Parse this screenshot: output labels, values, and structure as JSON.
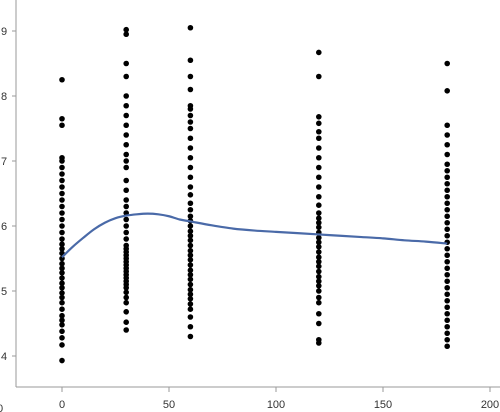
{
  "chart_data": {
    "type": "scatter",
    "title": "",
    "xlabel": "",
    "ylabel": "",
    "xlim": [
      -30,
      200
    ],
    "ylim": [
      3.6,
      9.3
    ],
    "x_ticks": [
      0,
      50,
      100,
      150,
      200
    ],
    "y_ticks": [
      4,
      5,
      6,
      7,
      8,
      9
    ],
    "x_tick_labels": [
      "0",
      "50",
      "100",
      "150",
      "200"
    ],
    "y_tick_labels": [
      "4",
      "5",
      "6",
      "7",
      "8",
      "9"
    ],
    "left_edge_label": "0",
    "grid": false,
    "legend": "none",
    "colors": {
      "points": "#000000",
      "smooth": "#4a6aa8",
      "axes": "#9a9a9a"
    },
    "series": [
      {
        "points": [
          [
            0,
            3.93
          ],
          [
            0,
            4.17
          ],
          [
            0,
            4.28
          ],
          [
            0,
            4.38
          ],
          [
            0,
            4.48
          ],
          [
            0,
            4.55
          ],
          [
            0,
            4.62
          ],
          [
            0,
            4.72
          ],
          [
            0,
            4.82
          ],
          [
            0,
            4.9
          ],
          [
            0,
            4.97
          ],
          [
            0,
            5.05
          ],
          [
            0,
            5.12
          ],
          [
            0,
            5.2
          ],
          [
            0,
            5.28
          ],
          [
            0,
            5.35
          ],
          [
            0,
            5.42
          ],
          [
            0,
            5.5
          ],
          [
            0,
            5.58
          ],
          [
            0,
            5.65
          ],
          [
            0,
            5.72
          ],
          [
            0,
            5.8
          ],
          [
            0,
            5.9
          ],
          [
            0,
            6.0
          ],
          [
            0,
            6.1
          ],
          [
            0,
            6.2
          ],
          [
            0,
            6.3
          ],
          [
            0,
            6.4
          ],
          [
            0,
            6.5
          ],
          [
            0,
            6.6
          ],
          [
            0,
            6.7
          ],
          [
            0,
            6.8
          ],
          [
            0,
            6.9
          ],
          [
            0,
            7.0
          ],
          [
            0,
            7.05
          ],
          [
            0,
            7.55
          ],
          [
            0,
            7.65
          ],
          [
            0,
            8.25
          ],
          [
            30,
            4.4
          ],
          [
            30,
            4.52
          ],
          [
            30,
            4.68
          ],
          [
            30,
            4.82
          ],
          [
            30,
            4.9
          ],
          [
            30,
            4.98
          ],
          [
            30,
            5.05
          ],
          [
            30,
            5.1
          ],
          [
            30,
            5.15
          ],
          [
            30,
            5.2
          ],
          [
            30,
            5.25
          ],
          [
            30,
            5.3
          ],
          [
            30,
            5.35
          ],
          [
            30,
            5.4
          ],
          [
            30,
            5.45
          ],
          [
            30,
            5.5
          ],
          [
            30,
            5.55
          ],
          [
            30,
            5.6
          ],
          [
            30,
            5.65
          ],
          [
            30,
            5.7
          ],
          [
            30,
            5.8
          ],
          [
            30,
            5.9
          ],
          [
            30,
            6.0
          ],
          [
            30,
            6.1
          ],
          [
            30,
            6.2
          ],
          [
            30,
            6.3
          ],
          [
            30,
            6.4
          ],
          [
            30,
            6.55
          ],
          [
            30,
            6.7
          ],
          [
            30,
            6.9
          ],
          [
            30,
            7.0
          ],
          [
            30,
            7.1
          ],
          [
            30,
            7.25
          ],
          [
            30,
            7.4
          ],
          [
            30,
            7.55
          ],
          [
            30,
            7.7
          ],
          [
            30,
            7.85
          ],
          [
            30,
            8.0
          ],
          [
            30,
            8.3
          ],
          [
            30,
            8.5
          ],
          [
            30,
            8.95
          ],
          [
            30,
            9.02
          ],
          [
            60,
            4.3
          ],
          [
            60,
            4.45
          ],
          [
            60,
            4.6
          ],
          [
            60,
            4.72
          ],
          [
            60,
            4.8
          ],
          [
            60,
            4.88
          ],
          [
            60,
            4.95
          ],
          [
            60,
            5.02
          ],
          [
            60,
            5.1
          ],
          [
            60,
            5.18
          ],
          [
            60,
            5.25
          ],
          [
            60,
            5.32
          ],
          [
            60,
            5.4
          ],
          [
            60,
            5.48
          ],
          [
            60,
            5.55
          ],
          [
            60,
            5.62
          ],
          [
            60,
            5.7
          ],
          [
            60,
            5.78
          ],
          [
            60,
            5.85
          ],
          [
            60,
            5.92
          ],
          [
            60,
            6.0
          ],
          [
            60,
            6.08
          ],
          [
            60,
            6.15
          ],
          [
            60,
            6.25
          ],
          [
            60,
            6.35
          ],
          [
            60,
            6.48
          ],
          [
            60,
            6.6
          ],
          [
            60,
            6.75
          ],
          [
            60,
            6.9
          ],
          [
            60,
            7.05
          ],
          [
            60,
            7.2
          ],
          [
            60,
            7.35
          ],
          [
            60,
            7.5
          ],
          [
            60,
            7.6
          ],
          [
            60,
            7.7
          ],
          [
            60,
            7.8
          ],
          [
            60,
            7.85
          ],
          [
            60,
            8.1
          ],
          [
            60,
            8.3
          ],
          [
            60,
            8.55
          ],
          [
            60,
            9.05
          ],
          [
            120,
            4.2
          ],
          [
            120,
            4.25
          ],
          [
            120,
            4.5
          ],
          [
            120,
            4.65
          ],
          [
            120,
            4.82
          ],
          [
            120,
            4.9
          ],
          [
            120,
            5.0
          ],
          [
            120,
            5.08
          ],
          [
            120,
            5.15
          ],
          [
            120,
            5.22
          ],
          [
            120,
            5.3
          ],
          [
            120,
            5.38
          ],
          [
            120,
            5.45
          ],
          [
            120,
            5.52
          ],
          [
            120,
            5.6
          ],
          [
            120,
            5.68
          ],
          [
            120,
            5.75
          ],
          [
            120,
            5.82
          ],
          [
            120,
            5.9
          ],
          [
            120,
            5.98
          ],
          [
            120,
            6.05
          ],
          [
            120,
            6.12
          ],
          [
            120,
            6.2
          ],
          [
            120,
            6.32
          ],
          [
            120,
            6.45
          ],
          [
            120,
            6.6
          ],
          [
            120,
            6.75
          ],
          [
            120,
            6.9
          ],
          [
            120,
            7.05
          ],
          [
            120,
            7.2
          ],
          [
            120,
            7.35
          ],
          [
            120,
            7.45
          ],
          [
            120,
            7.58
          ],
          [
            120,
            7.68
          ],
          [
            120,
            8.3
          ],
          [
            120,
            8.67
          ],
          [
            180,
            4.15
          ],
          [
            180,
            4.25
          ],
          [
            180,
            4.35
          ],
          [
            180,
            4.45
          ],
          [
            180,
            4.55
          ],
          [
            180,
            4.65
          ],
          [
            180,
            4.75
          ],
          [
            180,
            4.85
          ],
          [
            180,
            4.95
          ],
          [
            180,
            5.05
          ],
          [
            180,
            5.15
          ],
          [
            180,
            5.25
          ],
          [
            180,
            5.35
          ],
          [
            180,
            5.45
          ],
          [
            180,
            5.55
          ],
          [
            180,
            5.65
          ],
          [
            180,
            5.75
          ],
          [
            180,
            5.85
          ],
          [
            180,
            5.95
          ],
          [
            180,
            6.05
          ],
          [
            180,
            6.15
          ],
          [
            180,
            6.25
          ],
          [
            180,
            6.35
          ],
          [
            180,
            6.45
          ],
          [
            180,
            6.55
          ],
          [
            180,
            6.65
          ],
          [
            180,
            6.75
          ],
          [
            180,
            6.85
          ],
          [
            180,
            6.95
          ],
          [
            180,
            7.1
          ],
          [
            180,
            7.25
          ],
          [
            180,
            7.4
          ],
          [
            180,
            7.55
          ],
          [
            180,
            8.08
          ],
          [
            180,
            8.5
          ]
        ]
      },
      {
        "type": "line",
        "smooth": true,
        "points": [
          [
            0,
            5.52
          ],
          [
            5,
            5.68
          ],
          [
            10,
            5.82
          ],
          [
            15,
            5.95
          ],
          [
            20,
            6.05
          ],
          [
            25,
            6.12
          ],
          [
            30,
            6.16
          ],
          [
            35,
            6.18
          ],
          [
            40,
            6.19
          ],
          [
            45,
            6.18
          ],
          [
            50,
            6.15
          ],
          [
            55,
            6.1
          ],
          [
            60,
            6.07
          ],
          [
            70,
            6.01
          ],
          [
            80,
            5.96
          ],
          [
            90,
            5.93
          ],
          [
            100,
            5.91
          ],
          [
            110,
            5.89
          ],
          [
            120,
            5.87
          ],
          [
            130,
            5.85
          ],
          [
            140,
            5.83
          ],
          [
            150,
            5.81
          ],
          [
            160,
            5.78
          ],
          [
            170,
            5.76
          ],
          [
            180,
            5.73
          ]
        ]
      }
    ]
  }
}
